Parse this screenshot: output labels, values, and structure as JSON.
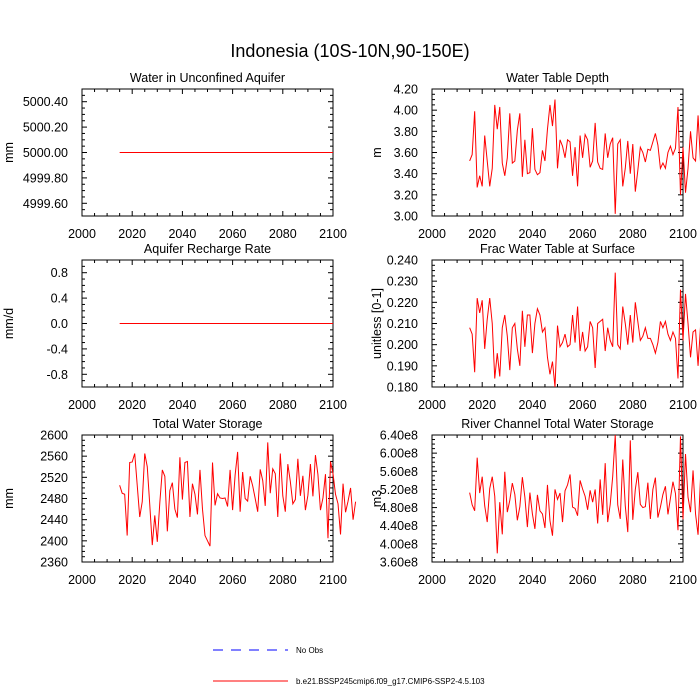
{
  "figure_title": "Indonesia (10S-10N,90-150E)",
  "colors": {
    "model": "#ff0000",
    "obs": "#0000ff"
  },
  "legend": {
    "obs_label": "No Obs",
    "model_label": "b.e21.BSSP245cmip6.f09_g17.CMIP6-SSP2-4.5.103"
  },
  "chart_data": [
    {
      "id": "p1",
      "type": "line",
      "title": "Water in Unconfined Aquifer",
      "xlabel": "",
      "ylabel": "mm",
      "xlim": [
        2000,
        2100
      ],
      "ylim": [
        4999.5,
        5000.5
      ],
      "xticks": [
        2000,
        2020,
        2040,
        2060,
        2080,
        2100
      ],
      "yticks": [
        4999.6,
        4999.8,
        5000.0,
        5000.2,
        5000.4
      ],
      "ytick_labels": [
        "4999.60",
        "4999.80",
        "5000.00",
        "5000.20",
        "5000.40"
      ],
      "series": [
        {
          "name": "b.e21.BSSP245cmip6.f09_g17.CMIP6-SSP2-4.5.103",
          "x_start": 2015,
          "x_end": 2100,
          "constant": 5000.0
        }
      ]
    },
    {
      "id": "p2",
      "type": "line",
      "title": "Water Table Depth",
      "xlabel": "",
      "ylabel": "m",
      "xlim": [
        2000,
        2100
      ],
      "ylim": [
        3.0,
        4.2
      ],
      "xticks": [
        2000,
        2020,
        2040,
        2060,
        2080,
        2100
      ],
      "yticks": [
        3.0,
        3.2,
        3.4,
        3.6,
        3.8,
        4.0,
        4.2
      ],
      "ytick_labels": [
        "3.00",
        "3.20",
        "3.40",
        "3.60",
        "3.80",
        "4.00",
        "4.20"
      ],
      "series": [
        {
          "name": "b.e21.BSSP245cmip6.f09_g17.CMIP6-SSP2-4.5.103",
          "x_start": 2015,
          "values": [
            3.52,
            3.58,
            3.99,
            3.27,
            3.38,
            3.28,
            3.76,
            3.52,
            3.28,
            3.45,
            4.05,
            3.82,
            4.03,
            3.5,
            3.38,
            3.55,
            3.97,
            3.5,
            3.52,
            3.81,
            3.97,
            3.37,
            3.72,
            3.4,
            3.41,
            3.83,
            3.44,
            3.39,
            3.41,
            3.62,
            3.52,
            3.82,
            4.05,
            3.85,
            4.1,
            3.45,
            3.72,
            3.66,
            3.55,
            3.72,
            3.7,
            3.38,
            3.65,
            3.28,
            3.76,
            3.55,
            3.77,
            3.72,
            3.46,
            3.52,
            3.88,
            3.51,
            3.45,
            3.44,
            3.78,
            3.55,
            3.68,
            3.74,
            3.02,
            3.68,
            3.72,
            3.28,
            3.45,
            3.71,
            3.4,
            3.68,
            3.23,
            3.43,
            3.65,
            3.6,
            3.51,
            3.63,
            3.62,
            3.7,
            3.78,
            3.67,
            3.45,
            3.5,
            3.45,
            3.6,
            3.66,
            3.58,
            3.64,
            4.03,
            3.2,
            3.65,
            3.22,
            3.45,
            3.8,
            3.55,
            3.52,
            3.95,
            3.5,
            3.86,
            3.6
          ]
        }
      ]
    },
    {
      "id": "p3",
      "type": "line",
      "title": "Aquifer Recharge Rate",
      "xlabel": "",
      "ylabel": "mm/d",
      "xlim": [
        2000,
        2100
      ],
      "ylim": [
        -1.0,
        1.0
      ],
      "xticks": [
        2000,
        2020,
        2040,
        2060,
        2080,
        2100
      ],
      "yticks": [
        -0.8,
        -0.4,
        0.0,
        0.4,
        0.8
      ],
      "ytick_labels": [
        "-0.8",
        "-0.4",
        "0.0",
        "0.4",
        "0.8"
      ],
      "series": [
        {
          "name": "b.e21.BSSP245cmip6.f09_g17.CMIP6-SSP2-4.5.103",
          "x_start": 2015,
          "x_end": 2100,
          "constant": 0.0
        }
      ]
    },
    {
      "id": "p4",
      "type": "line",
      "title": "Frac Water Table at Surface",
      "xlabel": "",
      "ylabel": "unitless [0-1]",
      "xlim": [
        2000,
        2100
      ],
      "ylim": [
        0.18,
        0.24
      ],
      "xticks": [
        2000,
        2020,
        2040,
        2060,
        2080,
        2100
      ],
      "yticks": [
        0.18,
        0.19,
        0.2,
        0.21,
        0.22,
        0.23,
        0.24
      ],
      "ytick_labels": [
        "0.180",
        "0.190",
        "0.200",
        "0.210",
        "0.220",
        "0.230",
        "0.240"
      ],
      "series": [
        {
          "name": "b.e21.BSSP245cmip6.f09_g17.CMIP6-SSP2-4.5.103",
          "x_start": 2015,
          "values": [
            0.208,
            0.205,
            0.187,
            0.222,
            0.215,
            0.221,
            0.198,
            0.212,
            0.222,
            0.21,
            0.184,
            0.196,
            0.185,
            0.208,
            0.214,
            0.204,
            0.188,
            0.208,
            0.21,
            0.198,
            0.19,
            0.216,
            0.199,
            0.214,
            0.214,
            0.196,
            0.21,
            0.217,
            0.214,
            0.206,
            0.208,
            0.194,
            0.186,
            0.192,
            0.18,
            0.209,
            0.199,
            0.201,
            0.205,
            0.199,
            0.2,
            0.214,
            0.201,
            0.218,
            0.197,
            0.206,
            0.197,
            0.199,
            0.211,
            0.208,
            0.189,
            0.21,
            0.211,
            0.212,
            0.197,
            0.208,
            0.202,
            0.199,
            0.234,
            0.2,
            0.198,
            0.218,
            0.21,
            0.2,
            0.214,
            0.201,
            0.22,
            0.211,
            0.202,
            0.204,
            0.208,
            0.203,
            0.203,
            0.2,
            0.196,
            0.201,
            0.211,
            0.208,
            0.211,
            0.205,
            0.202,
            0.206,
            0.203,
            0.184,
            0.226,
            0.202,
            0.224,
            0.21,
            0.194,
            0.206,
            0.207,
            0.19,
            0.209,
            0.193,
            0.204
          ]
        }
      ]
    },
    {
      "id": "p5",
      "type": "line",
      "title": "Total Water Storage",
      "xlabel": "",
      "ylabel": "mm",
      "xlim": [
        2000,
        2100
      ],
      "ylim": [
        2360,
        2600
      ],
      "xticks": [
        2000,
        2020,
        2040,
        2060,
        2080,
        2100
      ],
      "yticks": [
        2360,
        2400,
        2440,
        2480,
        2520,
        2560,
        2600
      ],
      "ytick_labels": [
        "2360",
        "2400",
        "2440",
        "2480",
        "2520",
        "2560",
        "2600"
      ],
      "series": [
        {
          "name": "b.e21.BSSP245cmip6.f09_g17.CMIP6-SSP2-4.5.103",
          "x_start": 2015,
          "values": [
            2505,
            2490,
            2488,
            2410,
            2548,
            2549,
            2565,
            2505,
            2445,
            2474,
            2565,
            2540,
            2468,
            2392,
            2448,
            2398,
            2472,
            2534,
            2522,
            2418,
            2495,
            2510,
            2460,
            2444,
            2558,
            2478,
            2548,
            2550,
            2445,
            2508,
            2488,
            2450,
            2534,
            2460,
            2410,
            2400,
            2390,
            2548,
            2467,
            2489,
            2481,
            2480,
            2481,
            2465,
            2534,
            2458,
            2524,
            2568,
            2455,
            2530,
            2480,
            2475,
            2522,
            2504,
            2480,
            2455,
            2535,
            2514,
            2466,
            2586,
            2490,
            2536,
            2527,
            2445,
            2565,
            2485,
            2455,
            2545,
            2512,
            2470,
            2478,
            2555,
            2485,
            2523,
            2458,
            2486,
            2545,
            2484,
            2562,
            2525,
            2458,
            2481,
            2526,
            2405,
            2550,
            2527,
            2488,
            2470,
            2412,
            2508,
            2454,
            2475,
            2500,
            2440,
            2474
          ]
        }
      ]
    },
    {
      "id": "p6",
      "type": "line",
      "title": "River Channel Total Water Storage",
      "xlabel": "",
      "ylabel": "m3",
      "xlim": [
        2000,
        2100
      ],
      "ylim": [
        360000000,
        640000000
      ],
      "xticks": [
        2000,
        2020,
        2040,
        2060,
        2080,
        2100
      ],
      "yticks": [
        360000000,
        400000000,
        440000000,
        480000000,
        520000000,
        560000000,
        600000000,
        640000000
      ],
      "ytick_labels": [
        "3.60e8",
        "4.00e8",
        "4.40e8",
        "4.80e8",
        "5.20e8",
        "5.60e8",
        "6.00e8",
        "6.40e8"
      ],
      "series": [
        {
          "name": "b.e21.BSSP245cmip6.f09_g17.CMIP6-SSP2-4.5.103",
          "x_start": 2015,
          "values": [
            513000000,
            486000000,
            473000000,
            590000000,
            512000000,
            548000000,
            484000000,
            448000000,
            522000000,
            548000000,
            505000000,
            379000000,
            492000000,
            421000000,
            559000000,
            470000000,
            496000000,
            534000000,
            509000000,
            452000000,
            482000000,
            547000000,
            503000000,
            437000000,
            513000000,
            466000000,
            433000000,
            508000000,
            473000000,
            466000000,
            435000000,
            530000000,
            451000000,
            418000000,
            520000000,
            498000000,
            512000000,
            448000000,
            517000000,
            530000000,
            553000000,
            481000000,
            478000000,
            462000000,
            540000000,
            521000000,
            505000000,
            475000000,
            518000000,
            492000000,
            520000000,
            445000000,
            542000000,
            464000000,
            578000000,
            448000000,
            487000000,
            549000000,
            640000000,
            486000000,
            455000000,
            586000000,
            484000000,
            426000000,
            628000000,
            453000000,
            520000000,
            558000000,
            487000000,
            480000000,
            482000000,
            535000000,
            455000000,
            520000000,
            546000000,
            458000000,
            481000000,
            509000000,
            527000000,
            465000000,
            501000000,
            537000000,
            511000000,
            430000000,
            637000000,
            454000000,
            598000000,
            503000000,
            470000000,
            562000000,
            466000000,
            420000000,
            548000000,
            425000000,
            508000000
          ]
        }
      ]
    }
  ]
}
